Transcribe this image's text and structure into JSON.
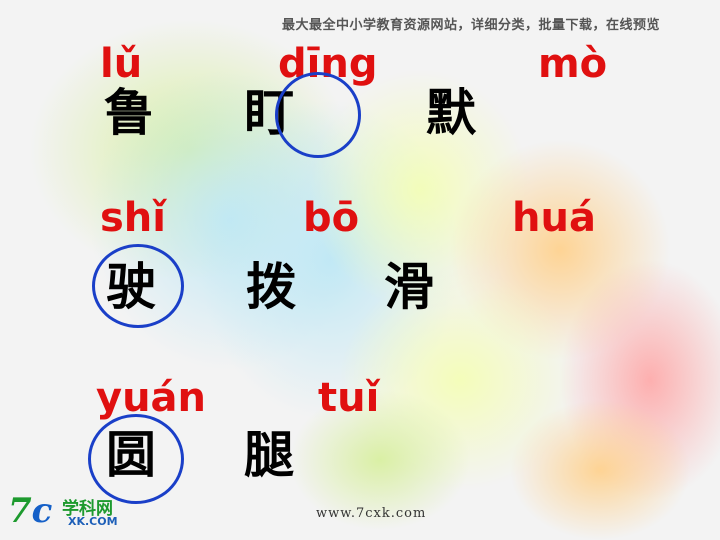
{
  "banner": "最大最全中小学教育资源网站，详细分类，批量下载，在线预览",
  "rows": [
    [
      {
        "pinyin": "lǔ",
        "hanzi": "鲁"
      },
      {
        "pinyin": "dīng",
        "hanzi": "盯"
      },
      {
        "pinyin": "mò",
        "hanzi": "默"
      }
    ],
    [
      {
        "pinyin": "shǐ",
        "hanzi": "驶"
      },
      {
        "pinyin": "bō",
        "hanzi": "拨"
      },
      {
        "pinyin": "huá",
        "hanzi": "滑"
      }
    ],
    [
      {
        "pinyin": "yuán",
        "hanzi": "圆"
      },
      {
        "pinyin": "tuǐ",
        "hanzi": "腿"
      }
    ]
  ],
  "logo": {
    "mark_7": "7",
    "mark_c": "c",
    "cn": "学科网",
    "en": "XK.COM"
  },
  "url": "www.7cxk.com",
  "colors": {
    "pinyin": "#e01010",
    "circle": "#1a3fc8"
  }
}
